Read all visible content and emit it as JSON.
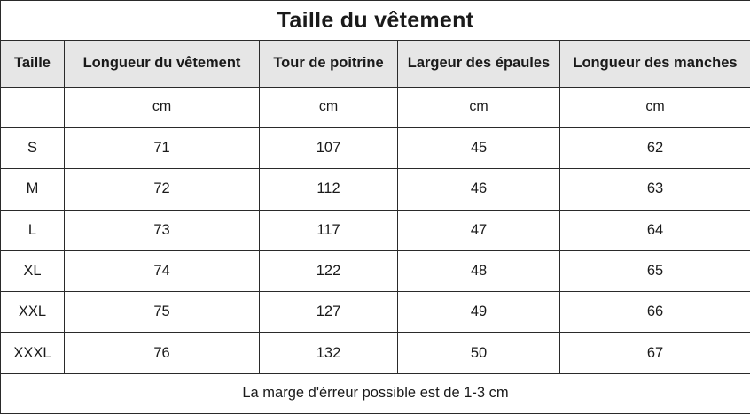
{
  "title": "Taille du vêtement",
  "headers": [
    "Taille",
    "Longueur du vêtement",
    "Tour de poitrine",
    "Largeur des épaules",
    "Longueur des manches"
  ],
  "units": [
    "",
    "cm",
    "cm",
    "cm",
    "cm"
  ],
  "rows": [
    [
      "S",
      "71",
      "107",
      "45",
      "62"
    ],
    [
      "M",
      "72",
      "112",
      "46",
      "63"
    ],
    [
      "L",
      "73",
      "117",
      "47",
      "64"
    ],
    [
      "XL",
      "74",
      "122",
      "48",
      "65"
    ],
    [
      "XXL",
      "75",
      "127",
      "49",
      "66"
    ],
    [
      "XXXL",
      "76",
      "132",
      "50",
      "67"
    ]
  ],
  "footer": "La marge d'érreur possible est de 1-3 cm"
}
